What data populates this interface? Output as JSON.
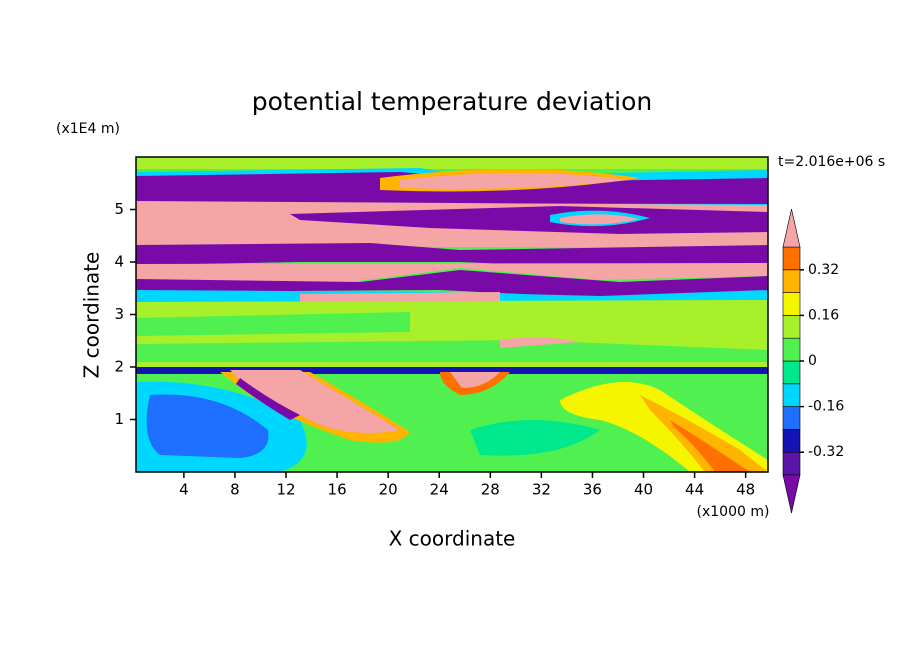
{
  "chart_data": {
    "type": "contour",
    "title": "potential temperature deviation",
    "xlabel": "X coordinate",
    "ylabel": "Z coordinate",
    "x_unit": "(x1000 m)",
    "y_unit": "(x1E4 m)",
    "annotation": "t=2.016e+06 s",
    "xlim": [
      0.25,
      49.75
    ],
    "ylim": [
      0,
      6
    ],
    "xticks": [
      4,
      8,
      12,
      16,
      20,
      24,
      28,
      32,
      36,
      40,
      44,
      48
    ],
    "yticks": [
      1,
      2,
      3,
      4,
      5
    ],
    "levels": [
      -0.4,
      -0.32,
      -0.24,
      -0.16,
      -0.08,
      0,
      0.08,
      0.16,
      0.24,
      0.32,
      0.4
    ],
    "colors": [
      "#7a0aa8",
      "#5a14a8",
      "#1414b4",
      "#1e6eff",
      "#00d7ff",
      "#00e88c",
      "#50f050",
      "#a8f02a",
      "#f5f500",
      "#ffb400",
      "#ff7000",
      "#f52a2a",
      "#f5a5a5"
    ],
    "colorbar_ticks": [
      -0.32,
      -0.16,
      0,
      0.16,
      0.32
    ]
  }
}
